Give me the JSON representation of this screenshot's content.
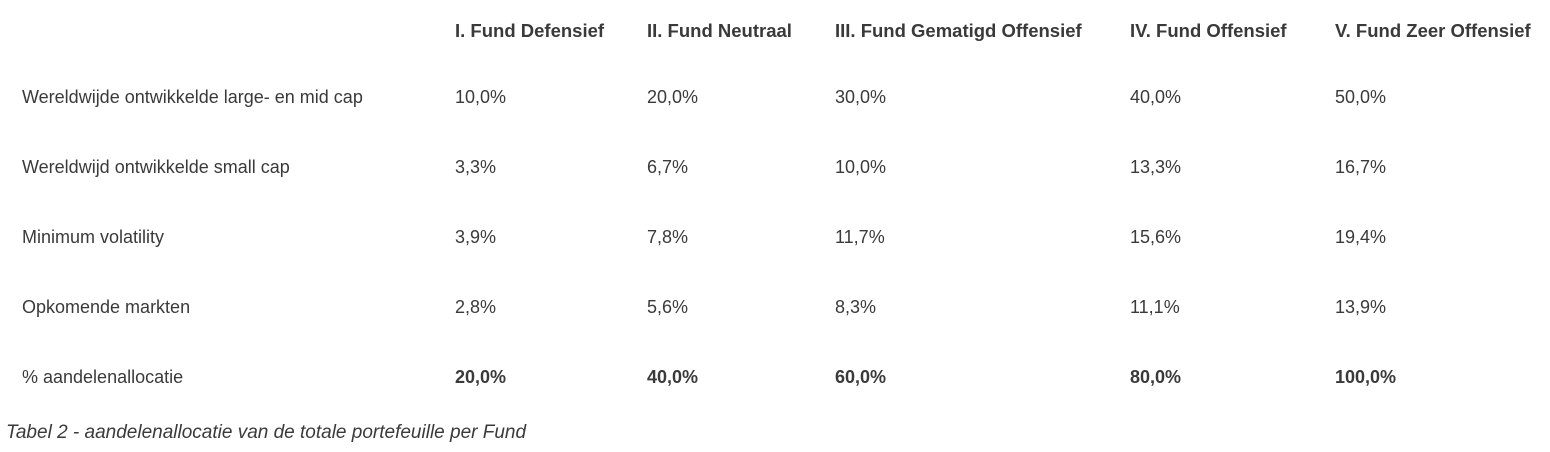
{
  "table": {
    "columns": [
      "",
      "I. Fund Defensief",
      "II. Fund Neutraal",
      "III. Fund Gematigd Offensief",
      "IV. Fund Offensief",
      "V. Fund Zeer Offensief"
    ],
    "rows": [
      {
        "label": "Wereldwijde ontwikkelde large- en mid cap",
        "values": [
          "10,0%",
          "20,0%",
          "30,0%",
          "40,0%",
          "50,0%"
        ],
        "bold": false
      },
      {
        "label": "Wereldwijd ontwikkelde small cap",
        "values": [
          "3,3%",
          "6,7%",
          "10,0%",
          "13,3%",
          "16,7%"
        ],
        "bold": false
      },
      {
        "label": "Minimum volatility",
        "values": [
          "3,9%",
          "7,8%",
          "11,7%",
          "15,6%",
          "19,4%"
        ],
        "bold": false
      },
      {
        "label": "Opkomende markten",
        "values": [
          "2,8%",
          "5,6%",
          "8,3%",
          "11,1%",
          "13,9%"
        ],
        "bold": false
      },
      {
        "label": "% aandelenallocatie",
        "values": [
          "20,0%",
          "40,0%",
          "60,0%",
          "80,0%",
          "100,0%"
        ],
        "bold": true
      }
    ]
  },
  "caption": "Tabel 2 - aandelenallocatie van de totale portefeuille per Fund",
  "colors": {
    "text": "#3a3a3a",
    "background": "#ffffff"
  }
}
